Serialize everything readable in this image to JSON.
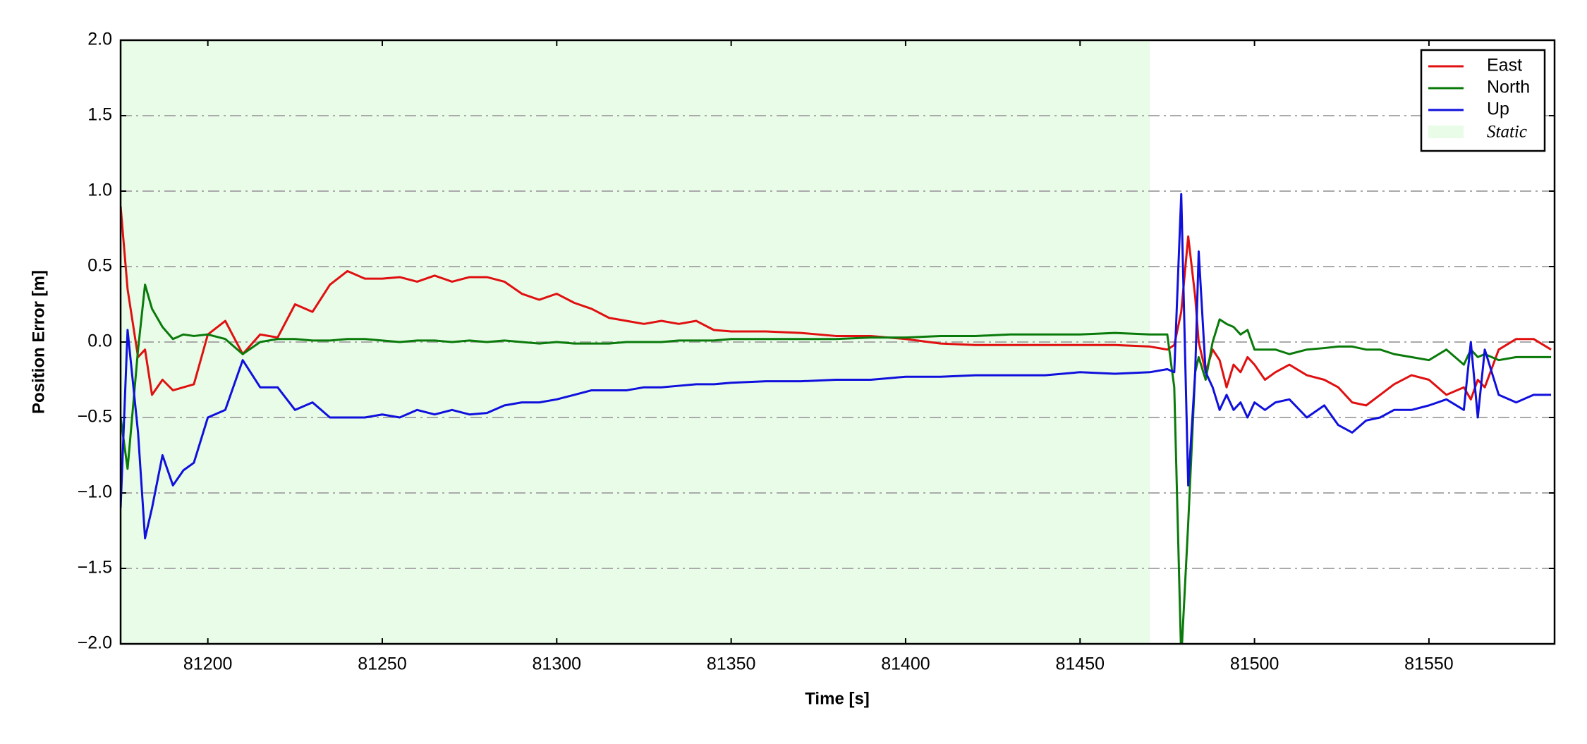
{
  "chart_data": {
    "type": "line",
    "xlabel": "Time [s]",
    "ylabel": "Position Error [m]",
    "x": [
      81175,
      81177,
      81180,
      81182,
      81184,
      81187,
      81190,
      81193,
      81196,
      81200,
      81205,
      81210,
      81215,
      81220,
      81225,
      81230,
      81235,
      81240,
      81245,
      81250,
      81255,
      81260,
      81265,
      81270,
      81275,
      81280,
      81285,
      81290,
      81295,
      81300,
      81305,
      81310,
      81315,
      81320,
      81325,
      81330,
      81335,
      81340,
      81345,
      81350,
      81360,
      81370,
      81380,
      81390,
      81400,
      81410,
      81420,
      81430,
      81440,
      81450,
      81460,
      81470,
      81475,
      81477,
      81479,
      81481,
      81483,
      81484,
      81486,
      81488,
      81490,
      81492,
      81494,
      81496,
      81498,
      81500,
      81503,
      81506,
      81510,
      81515,
      81520,
      81524,
      81528,
      81532,
      81536,
      81540,
      81545,
      81550,
      81555,
      81560,
      81562,
      81564,
      81566,
      81570,
      81575,
      81580,
      81585
    ],
    "series": [
      {
        "name": "East",
        "color": "#e01010",
        "values": [
          0.9,
          0.35,
          -0.1,
          -0.05,
          -0.35,
          -0.25,
          -0.32,
          -0.3,
          -0.28,
          0.05,
          0.14,
          -0.08,
          0.05,
          0.03,
          0.25,
          0.2,
          0.38,
          0.47,
          0.42,
          0.42,
          0.43,
          0.4,
          0.44,
          0.4,
          0.43,
          0.43,
          0.4,
          0.32,
          0.28,
          0.32,
          0.26,
          0.22,
          0.16,
          0.14,
          0.12,
          0.14,
          0.12,
          0.14,
          0.08,
          0.07,
          0.07,
          0.06,
          0.04,
          0.04,
          0.02,
          -0.01,
          -0.02,
          -0.02,
          -0.02,
          -0.02,
          -0.02,
          -0.03,
          -0.05,
          -0.02,
          0.2,
          0.7,
          0.3,
          0.0,
          -0.2,
          -0.05,
          -0.12,
          -0.3,
          -0.15,
          -0.2,
          -0.1,
          -0.15,
          -0.25,
          -0.2,
          -0.15,
          -0.22,
          -0.25,
          -0.3,
          -0.4,
          -0.42,
          -0.35,
          -0.28,
          -0.22,
          -0.25,
          -0.35,
          -0.3,
          -0.38,
          -0.25,
          -0.3,
          -0.05,
          0.02,
          0.02,
          -0.05
        ]
      },
      {
        "name": "North",
        "color": "#0a7a0a",
        "values": [
          -0.5,
          -0.84,
          -0.05,
          0.38,
          0.22,
          0.1,
          0.02,
          0.05,
          0.04,
          0.05,
          0.02,
          -0.08,
          0.0,
          0.02,
          0.02,
          0.01,
          0.01,
          0.02,
          0.02,
          0.01,
          0.0,
          0.01,
          0.01,
          0.0,
          0.01,
          0.0,
          0.01,
          0.0,
          -0.01,
          0.0,
          -0.01,
          -0.01,
          -0.01,
          0.0,
          0.0,
          0.0,
          0.01,
          0.01,
          0.01,
          0.02,
          0.02,
          0.02,
          0.02,
          0.03,
          0.03,
          0.04,
          0.04,
          0.05,
          0.05,
          0.05,
          0.06,
          0.05,
          0.05,
          -0.3,
          -2.1,
          -1.2,
          -0.2,
          -0.1,
          -0.25,
          0.0,
          0.15,
          0.12,
          0.1,
          0.05,
          0.08,
          -0.05,
          -0.05,
          -0.05,
          -0.08,
          -0.05,
          -0.04,
          -0.03,
          -0.03,
          -0.05,
          -0.05,
          -0.08,
          -0.1,
          -0.12,
          -0.05,
          -0.15,
          -0.05,
          -0.1,
          -0.08,
          -0.12,
          -0.1,
          -0.1,
          -0.1
        ]
      },
      {
        "name": "Up",
        "color": "#1010dd",
        "values": [
          -1.1,
          0.08,
          -0.6,
          -1.3,
          -1.1,
          -0.75,
          -0.95,
          -0.85,
          -0.8,
          -0.5,
          -0.45,
          -0.12,
          -0.3,
          -0.3,
          -0.45,
          -0.4,
          -0.5,
          -0.5,
          -0.5,
          -0.48,
          -0.5,
          -0.45,
          -0.48,
          -0.45,
          -0.48,
          -0.47,
          -0.42,
          -0.4,
          -0.4,
          -0.38,
          -0.35,
          -0.32,
          -0.32,
          -0.32,
          -0.3,
          -0.3,
          -0.29,
          -0.28,
          -0.28,
          -0.27,
          -0.26,
          -0.26,
          -0.25,
          -0.25,
          -0.23,
          -0.23,
          -0.22,
          -0.22,
          -0.22,
          -0.2,
          -0.21,
          -0.2,
          -0.18,
          -0.2,
          0.98,
          -0.95,
          -0.2,
          0.6,
          -0.2,
          -0.3,
          -0.45,
          -0.35,
          -0.45,
          -0.4,
          -0.5,
          -0.4,
          -0.45,
          -0.4,
          -0.38,
          -0.5,
          -0.42,
          -0.55,
          -0.6,
          -0.52,
          -0.5,
          -0.45,
          -0.45,
          -0.42,
          -0.38,
          -0.45,
          0.0,
          -0.5,
          -0.05,
          -0.35,
          -0.4,
          -0.35,
          -0.35
        ]
      }
    ],
    "shade": {
      "label": "Static",
      "xrange": [
        81175,
        81470
      ],
      "color": "#e8fce8"
    },
    "xlim": [
      81175,
      81586
    ],
    "xticks": [
      81200,
      81250,
      81300,
      81350,
      81400,
      81450,
      81500,
      81550
    ],
    "ylim": [
      -2,
      2
    ],
    "yticks": [
      {
        "value": -2,
        "label": "−2.0"
      },
      {
        "value": -1.5,
        "label": "−1.5"
      },
      {
        "value": -1,
        "label": "−1.0"
      },
      {
        "value": -0.5,
        "label": "−0.5"
      },
      {
        "value": 0,
        "label": "0.0"
      },
      0.5,
      {
        "value": 1,
        "label": "1.0"
      },
      1.5,
      {
        "value": 2,
        "label": "2.0"
      }
    ],
    "grid": true,
    "legend": "upper right"
  }
}
